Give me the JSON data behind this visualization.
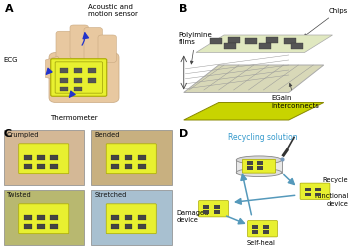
{
  "fig_width": 3.5,
  "fig_height": 2.5,
  "dpi": 100,
  "background_color": "#ffffff",
  "panel_label_fontsize": 8,
  "panel_label_fontweight": "bold",
  "hand_color": "#e8c8a0",
  "hand_edge_color": "#c8a880",
  "device_color": "#e8f030",
  "device_edge_color": "#aaaa00",
  "chip_color": "#555555",
  "chip_edge_color": "#333333",
  "arrow_color_A": "#2233cc",
  "arrow_color_D": "#5599bb",
  "recycle_title_color": "#3399cc",
  "layer_green": "#c8d400",
  "layer_gray": "#d8d8b8",
  "layer_top": "#e0e8c0",
  "sub_panel_colors": [
    "#d4b896",
    "#c8b080",
    "#b8b870",
    "#a8c0d0"
  ],
  "sub_panel_labels": [
    "Crumpled",
    "Bended",
    "Twisted",
    "Stretched"
  ]
}
